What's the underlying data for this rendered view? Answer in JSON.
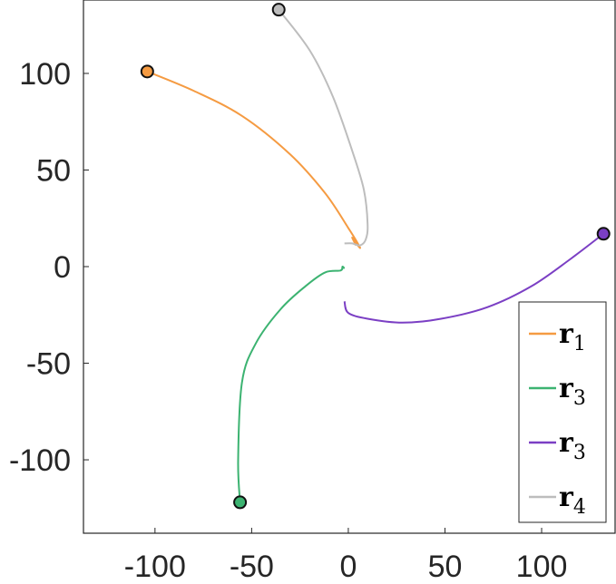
{
  "chart_data": {
    "type": "line",
    "title": "",
    "xlabel": "",
    "ylabel": "",
    "xlim": [
      -137,
      138
    ],
    "ylim": [
      -138,
      138
    ],
    "xticks": [
      -100,
      -50,
      0,
      50,
      100
    ],
    "yticks": [
      100,
      50,
      0,
      -50,
      -100
    ],
    "xtick_labels": [
      "-100",
      "-50",
      "0",
      "50",
      "100"
    ],
    "ytick_labels": [
      "100",
      "50",
      "0",
      "-50",
      "-100"
    ],
    "grid": false,
    "legend": {
      "placement": "bottom-right",
      "entries": [
        {
          "symbol": "r",
          "sub": "1",
          "color": "#f59b42"
        },
        {
          "symbol": "r",
          "sub": "3",
          "color": "#3cb371"
        },
        {
          "symbol": "r",
          "sub": "3",
          "color": "#7b3fc4"
        },
        {
          "symbol": "r",
          "sub": "4",
          "color": "#bdbdbd"
        }
      ]
    },
    "series": [
      {
        "color": "#f59b42",
        "start_marker": [
          -104,
          101
        ],
        "x": [
          -104,
          -80,
          -55,
          -30,
          -12,
          0,
          6,
          4,
          2,
          4
        ],
        "y": [
          101,
          91,
          78,
          58,
          38,
          20,
          10,
          12,
          15,
          11
        ]
      },
      {
        "color": "#3cb371",
        "start_marker": [
          -56,
          -122
        ],
        "x": [
          -56,
          -57,
          -55,
          -48,
          -35,
          -22,
          -12,
          -4,
          -3,
          -2
        ],
        "y": [
          -122,
          -100,
          -60,
          -40,
          -22,
          -10,
          -3,
          -2,
          0,
          -1
        ]
      },
      {
        "color": "#7b3fc4",
        "start_marker": [
          132,
          17
        ],
        "x": [
          132,
          115,
          95,
          72,
          48,
          28,
          10,
          0,
          -2
        ],
        "y": [
          17,
          4,
          -10,
          -21,
          -27,
          -29,
          -27,
          -24,
          -18
        ]
      },
      {
        "color": "#bdbdbd",
        "start_marker": [
          -36,
          133
        ],
        "x": [
          -36,
          -20,
          -8,
          2,
          8,
          10,
          9,
          6,
          2,
          -2
        ],
        "y": [
          133,
          112,
          88,
          60,
          40,
          22,
          14,
          11,
          12,
          12
        ]
      }
    ]
  }
}
